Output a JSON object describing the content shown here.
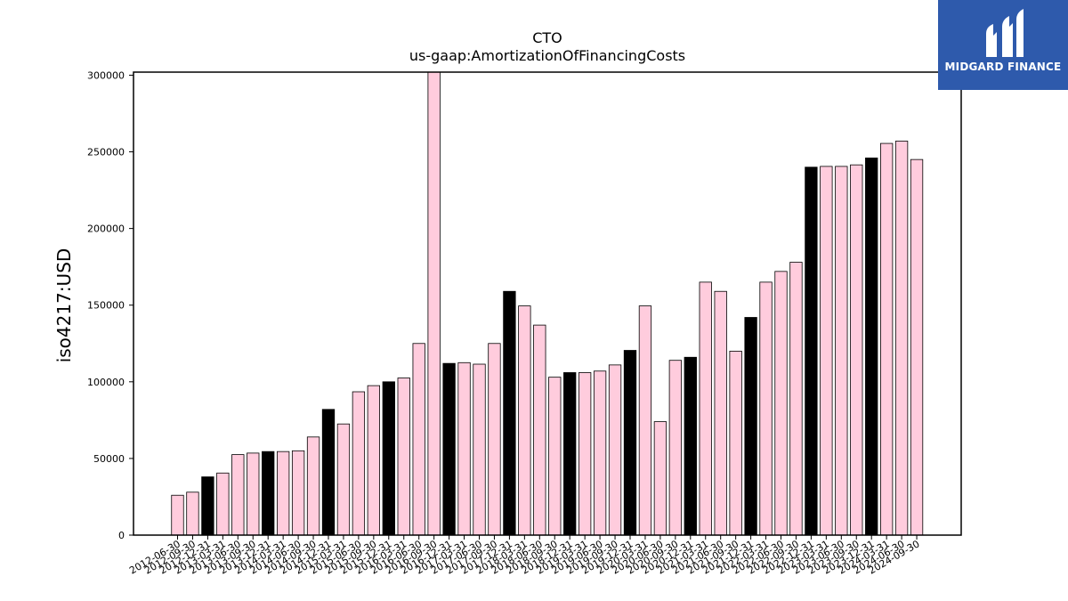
{
  "chart_data": {
    "type": "bar",
    "title": "CTO",
    "subtitle": "us-gaap:AmortizationOfFinancingCosts",
    "xlabel": "",
    "ylabel": "iso4217:USD",
    "ylim": [
      0,
      302000
    ],
    "yticks": [
      0,
      50000,
      100000,
      150000,
      200000,
      250000,
      300000
    ],
    "grid": false,
    "legend": "none",
    "categories": [
      "2012-06-30",
      "2012-09-30",
      "2012-12-31",
      "2013-03-31",
      "2013-06-30",
      "2013-09-30",
      "2013-12-31",
      "2014-03-31",
      "2014-06-30",
      "2014-09-30",
      "2014-12-31",
      "2015-03-31",
      "2015-06-30",
      "2015-09-30",
      "2015-12-31",
      "2016-03-31",
      "2016-06-30",
      "2016-09-30",
      "2016-12-31",
      "2017-03-31",
      "2017-06-30",
      "2017-09-30",
      "2017-12-31",
      "2018-03-31",
      "2018-06-30",
      "2018-09-30",
      "2018-12-31",
      "2019-03-31",
      "2019-06-30",
      "2019-09-30",
      "2019-12-31",
      "2020-03-31",
      "2020-06-30",
      "2020-09-30",
      "2020-12-31",
      "2021-03-31",
      "2021-06-30",
      "2021-09-30",
      "2021-12-31",
      "2022-03-31",
      "2022-06-30",
      "2022-09-30",
      "2022-12-31",
      "2023-03-31",
      "2023-06-30",
      "2023-09-30",
      "2023-12-31",
      "2024-03-31",
      "2024-06-30",
      "2024-09-30"
    ],
    "values": [
      26000,
      28000,
      38000,
      40500,
      52500,
      53500,
      54500,
      54500,
      55000,
      64000,
      82000,
      72500,
      93500,
      97500,
      100000,
      102500,
      125000,
      305000,
      112000,
      112500,
      111500,
      125000,
      159000,
      149500,
      137000,
      103000,
      106000,
      106000,
      107000,
      111000,
      120500,
      149500,
      74000,
      114000,
      116000,
      165000,
      159000,
      120000,
      142000,
      165000,
      172000,
      178000,
      240000,
      240500,
      240500,
      241500,
      246000,
      255500,
      257000,
      245000
    ],
    "bar_types": [
      "q",
      "q",
      "fy",
      "q",
      "q",
      "q",
      "fy",
      "q",
      "q",
      "q",
      "fy",
      "q",
      "q",
      "q",
      "fy",
      "q",
      "q",
      "q",
      "fy",
      "q",
      "q",
      "q",
      "fy",
      "q",
      "q",
      "q",
      "fy",
      "q",
      "q",
      "q",
      "fy",
      "q",
      "q",
      "q",
      "fy",
      "q",
      "q",
      "q",
      "fy",
      "q",
      "q",
      "q",
      "fy",
      "q",
      "q",
      "q",
      "fy",
      "q",
      "q",
      "q"
    ],
    "colors": {
      "q": "#ffccdd",
      "fy": "#000000",
      "edge": "#000000"
    }
  },
  "logo": {
    "text": "MIDGARD FINANCE",
    "bg": "#2e5aac",
    "fg": "#ffffff"
  }
}
